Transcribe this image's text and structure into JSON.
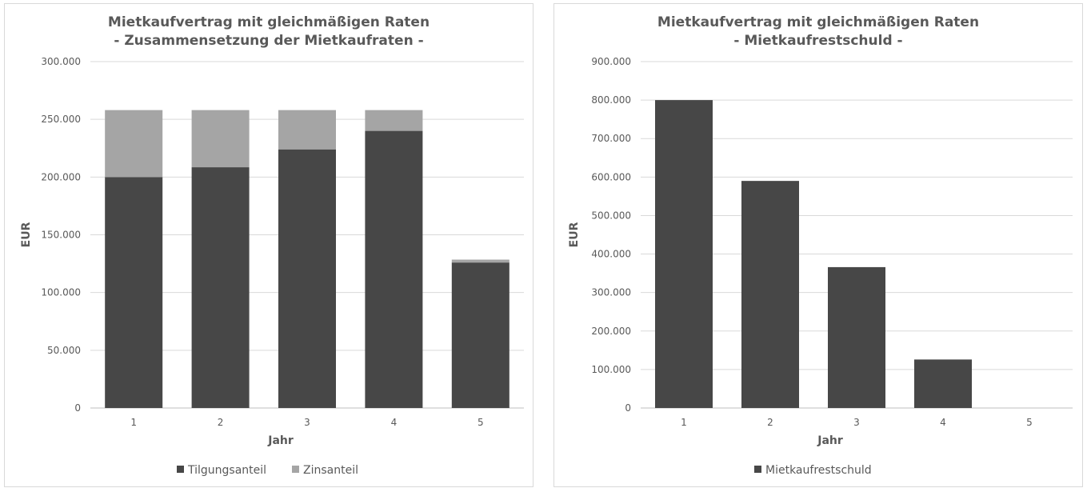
{
  "chart_data": [
    {
      "type": "bar",
      "stacked": true,
      "title": [
        "Mietkaufvertrag  mit gleichmäßigen Raten",
        "- Zusammensetzung der Mietkaufraten -"
      ],
      "xlabel": "Jahr",
      "ylabel": "EUR",
      "categories": [
        "1",
        "2",
        "3",
        "4",
        "5"
      ],
      "ylim": [
        0,
        300000
      ],
      "yticks": [
        0,
        50000,
        100000,
        150000,
        200000,
        250000,
        300000
      ],
      "ytick_labels": [
        "0",
        "50.000",
        "100.000",
        "150.000",
        "200.000",
        "250.000",
        "300.000"
      ],
      "series": [
        {
          "name": "Tilgungsanteil",
          "color": "#474747",
          "values": [
            200000,
            208500,
            224000,
            240000,
            126000
          ]
        },
        {
          "name": "Zinsanteil",
          "color": "#a5a5a5",
          "values": [
            58000,
            49500,
            34000,
            18000,
            2500
          ]
        }
      ],
      "grid": true,
      "legend": "bottom"
    },
    {
      "type": "bar",
      "title": [
        "Mietkaufvertrag  mit gleichmäßigen Raten",
        "- Mietkaufrestschuld -"
      ],
      "xlabel": "Jahr",
      "ylabel": "EUR",
      "categories": [
        "1",
        "2",
        "3",
        "4",
        "5"
      ],
      "ylim": [
        0,
        900000
      ],
      "yticks": [
        0,
        100000,
        200000,
        300000,
        400000,
        500000,
        600000,
        700000,
        800000,
        900000
      ],
      "ytick_labels": [
        "0",
        "100.000",
        "200.000",
        "300.000",
        "400.000",
        "500.000",
        "600.000",
        "700.000",
        "800.000",
        "900.000"
      ],
      "series": [
        {
          "name": "Mietkaufrestschuld",
          "color": "#474747",
          "values": [
            800000,
            590000,
            366000,
            126000,
            0
          ]
        }
      ],
      "grid": true,
      "legend": "bottom"
    }
  ]
}
